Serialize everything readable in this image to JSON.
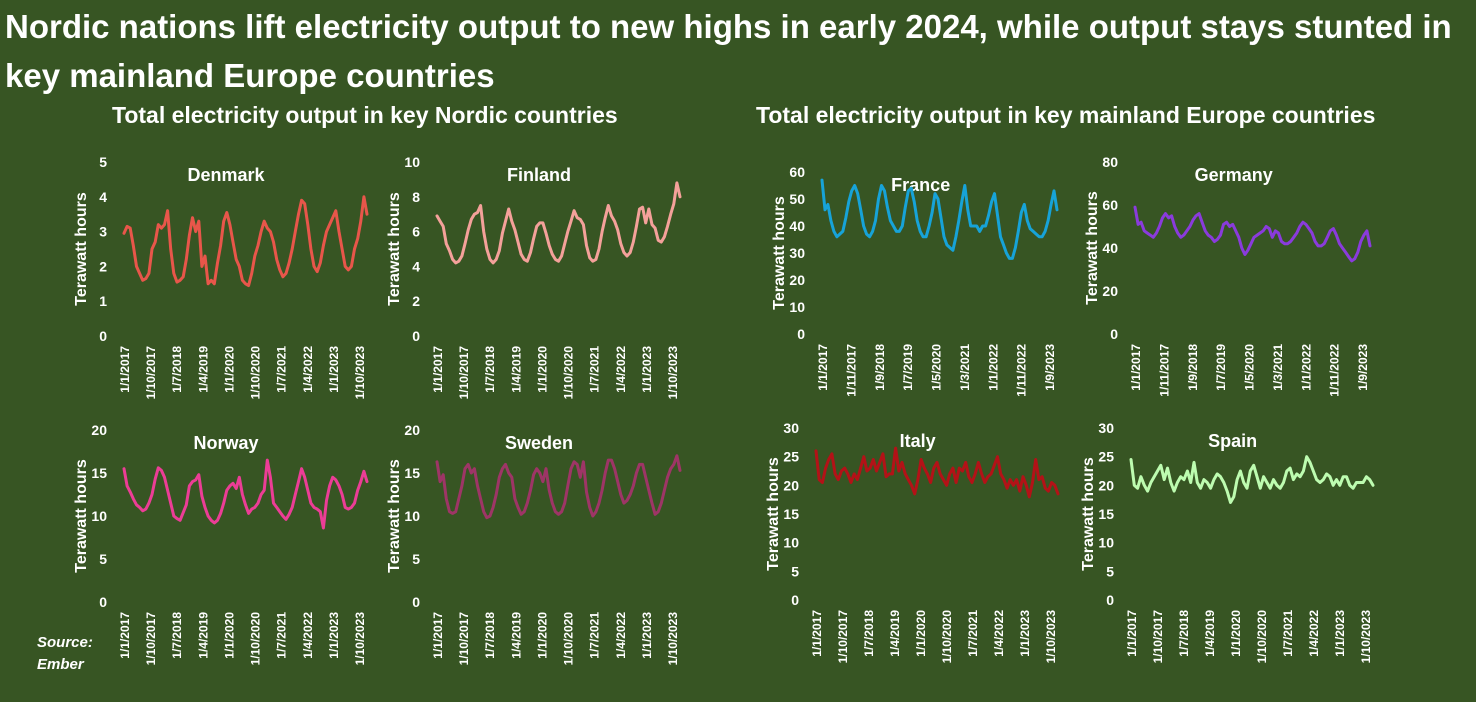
{
  "title": "Nordic nations lift electricity output to new highs in early 2024, while output stays stunted in key mainland Europe countries",
  "sections": {
    "left_title": "Total electricity output in key Nordic countries",
    "right_title": "Total electricity output in key mainland Europe countries"
  },
  "source": {
    "label": "Source:",
    "name": "Ember"
  },
  "colors": {
    "background": "#375523",
    "text": "#ffffff"
  },
  "chart_data": [
    {
      "id": "denmark",
      "type": "line",
      "title": "Denmark",
      "ylabel": "Terawatt hours",
      "ylim": [
        0,
        5
      ],
      "yticks": [
        0,
        1,
        2,
        3,
        4,
        5
      ],
      "xtick_labels": [
        "1/1/2017",
        "1/10/2017",
        "1/7/2018",
        "1/4/2019",
        "1/1/2020",
        "1/10/2020",
        "1/7/2021",
        "1/4/2022",
        "1/1/2023",
        "1/10/2023"
      ],
      "color": "#e8564a",
      "values": [
        2.95,
        3.15,
        3.1,
        2.6,
        2.0,
        1.8,
        1.6,
        1.65,
        1.8,
        2.5,
        2.7,
        3.2,
        3.1,
        3.2,
        3.6,
        2.5,
        1.8,
        1.55,
        1.6,
        1.7,
        2.2,
        2.9,
        3.4,
        3.0,
        3.3,
        2.0,
        2.3,
        1.5,
        1.6,
        1.5,
        2.1,
        2.6,
        3.3,
        3.55,
        3.2,
        2.7,
        2.2,
        2.0,
        1.6,
        1.5,
        1.45,
        1.8,
        2.3,
        2.6,
        3.0,
        3.3,
        3.1,
        3.0,
        2.7,
        2.2,
        1.9,
        1.7,
        1.8,
        2.1,
        2.5,
        3.0,
        3.5,
        3.9,
        3.8,
        3.2,
        2.5,
        2.0,
        1.85,
        2.1,
        2.6,
        3.0,
        3.2,
        3.4,
        3.6,
        3.0,
        2.5,
        2.0,
        1.9,
        2.0,
        2.5,
        2.8,
        3.3,
        4.0,
        3.5
      ]
    },
    {
      "id": "finland",
      "type": "line",
      "title": "Finland",
      "ylabel": "Terawatt hours",
      "ylim": [
        0,
        10
      ],
      "yticks": [
        0,
        2,
        4,
        6,
        8,
        10
      ],
      "xtick_labels": [
        "1/1/2017",
        "1/10/2017",
        "1/7/2018",
        "1/4/2019",
        "1/1/2020",
        "1/10/2020",
        "1/7/2021",
        "1/4/2022",
        "1/1/2023",
        "1/10/2023"
      ],
      "color": "#f4a19a",
      "values": [
        6.9,
        6.6,
        6.3,
        5.3,
        4.9,
        4.4,
        4.2,
        4.3,
        4.6,
        5.3,
        6.1,
        6.7,
        7.0,
        7.1,
        7.5,
        6.0,
        5.0,
        4.4,
        4.2,
        4.4,
        4.9,
        5.9,
        6.6,
        7.3,
        6.6,
        6.1,
        5.4,
        4.7,
        4.4,
        4.3,
        4.8,
        5.6,
        6.3,
        6.5,
        6.5,
        5.9,
        5.2,
        4.7,
        4.4,
        4.3,
        4.6,
        5.3,
        6.0,
        6.6,
        7.2,
        6.8,
        6.7,
        6.4,
        5.2,
        4.5,
        4.3,
        4.4,
        5.0,
        6.0,
        6.8,
        7.5,
        6.9,
        6.6,
        6.1,
        5.3,
        4.8,
        4.6,
        4.8,
        5.4,
        6.3,
        7.3,
        7.4,
        6.5,
        7.3,
        6.4,
        6.2,
        5.5,
        5.4,
        5.7,
        6.3,
        7.0,
        7.6,
        8.8,
        8.0
      ]
    },
    {
      "id": "norway",
      "type": "line",
      "title": "Norway",
      "ylabel": "Terawatt hours",
      "ylim": [
        0,
        20
      ],
      "yticks": [
        0,
        5,
        10,
        15,
        20
      ],
      "xtick_labels": [
        "1/1/2017",
        "1/10/2017",
        "1/7/2018",
        "1/4/2019",
        "1/1/2020",
        "1/10/2020",
        "1/7/2021",
        "1/4/2022",
        "1/1/2023",
        "1/10/2023"
      ],
      "color": "#ec3d96",
      "values": [
        15.5,
        13.5,
        12.8,
        12.0,
        11.3,
        11.0,
        10.6,
        10.8,
        11.5,
        12.5,
        14.3,
        15.6,
        15.3,
        14.5,
        13.0,
        11.5,
        10.0,
        9.7,
        9.5,
        10.4,
        11.3,
        13.5,
        14.0,
        14.2,
        14.8,
        12.3,
        11.0,
        10.0,
        9.5,
        9.2,
        9.5,
        10.3,
        11.5,
        13.0,
        13.5,
        13.8,
        13.2,
        14.5,
        12.5,
        11.3,
        10.3,
        10.8,
        11.0,
        11.5,
        12.5,
        13.0,
        16.5,
        14.5,
        11.5,
        11.0,
        10.5,
        10.0,
        9.6,
        10.2,
        11.0,
        12.5,
        14.0,
        15.5,
        14.5,
        13.0,
        11.5,
        11.0,
        10.8,
        10.5,
        8.6,
        11.8,
        13.5,
        14.5,
        14.2,
        13.5,
        12.5,
        11.0,
        10.8,
        11.0,
        11.5,
        13.0,
        14.0,
        15.2,
        14.0
      ]
    },
    {
      "id": "sweden",
      "type": "line",
      "title": "Sweden",
      "ylabel": "Terawatt hours",
      "ylim": [
        0,
        20
      ],
      "yticks": [
        0,
        5,
        10,
        15,
        20
      ],
      "xtick_labels": [
        "1/1/2017",
        "1/10/2017",
        "1/7/2018",
        "1/4/2019",
        "1/1/2020",
        "1/10/2020",
        "1/7/2021",
        "1/4/2022",
        "1/1/2023",
        "1/10/2023"
      ],
      "color": "#9e3566",
      "values": [
        16.3,
        14.0,
        14.8,
        12.0,
        10.5,
        10.3,
        10.5,
        12.0,
        13.5,
        15.5,
        16.0,
        15.0,
        15.5,
        13.5,
        12.0,
        10.5,
        9.8,
        10.0,
        11.0,
        12.5,
        14.5,
        15.5,
        16.0,
        15.0,
        14.5,
        12.0,
        11.0,
        10.2,
        10.5,
        11.5,
        13.0,
        14.8,
        15.5,
        15.0,
        14.0,
        15.5,
        13.0,
        11.5,
        10.5,
        10.2,
        10.5,
        11.5,
        13.5,
        15.5,
        16.3,
        16.0,
        14.5,
        16.3,
        12.8,
        11.0,
        10.0,
        10.5,
        11.5,
        13.0,
        15.0,
        16.5,
        16.5,
        15.5,
        14.0,
        12.5,
        11.5,
        11.8,
        12.5,
        13.5,
        15.0,
        16.0,
        16.0,
        14.5,
        13.0,
        11.5,
        10.2,
        10.5,
        11.5,
        13.0,
        14.5,
        15.5,
        16.0,
        17.0,
        15.3
      ]
    },
    {
      "id": "france",
      "type": "line",
      "title": "France",
      "ylabel": "Terawatt hours",
      "ylim": [
        0,
        60
      ],
      "yticks": [
        0,
        10,
        20,
        30,
        40,
        50,
        60
      ],
      "xtick_labels": [
        "1/1/2017",
        "1/11/2017",
        "1/9/2018",
        "1/7/2019",
        "1/5/2020",
        "1/3/2021",
        "1/1/2022",
        "1/11/2022",
        "1/9/2023"
      ],
      "color": "#17a3d8",
      "values": [
        57,
        46,
        48,
        42,
        38,
        36,
        37,
        38,
        43,
        49,
        53,
        55,
        52,
        46,
        40,
        37,
        36,
        38,
        42,
        50,
        55,
        53,
        47,
        42,
        40,
        38,
        38,
        40,
        47,
        53,
        54,
        49,
        42,
        38,
        36,
        36,
        40,
        45,
        52,
        50,
        43,
        36,
        33,
        32,
        31,
        36,
        42,
        49,
        55,
        46,
        40,
        40,
        40,
        38,
        40,
        40,
        44,
        49,
        52,
        44,
        36,
        33,
        30,
        28,
        28,
        32,
        38,
        45,
        48,
        42,
        39,
        38,
        37,
        36,
        36,
        38,
        42,
        48,
        53,
        46
      ]
    },
    {
      "id": "germany",
      "type": "line",
      "title": "Germany",
      "ylabel": "Terawatt hours",
      "ylim": [
        0,
        80
      ],
      "yticks": [
        0,
        20,
        40,
        60,
        80
      ],
      "xtick_labels": [
        "1/1/2017",
        "1/11/2017",
        "1/9/2018",
        "1/7/2019",
        "1/5/2020",
        "1/3/2021",
        "1/1/2022",
        "1/11/2022",
        "1/9/2023"
      ],
      "color": "#8a3bdc",
      "values": [
        59,
        51,
        52,
        48,
        47,
        46,
        45,
        47,
        50,
        54,
        56,
        54,
        55,
        50,
        47,
        45,
        46,
        48,
        50,
        53,
        55,
        56,
        52,
        48,
        46,
        45,
        43,
        44,
        46,
        51,
        52,
        50,
        51,
        48,
        45,
        40,
        37,
        39,
        42,
        45,
        46,
        47,
        48,
        50,
        49,
        45,
        48,
        47,
        43,
        42,
        42,
        43,
        45,
        47,
        50,
        52,
        51,
        49,
        47,
        43,
        41,
        41,
        42,
        45,
        48,
        49,
        46,
        42,
        40,
        38,
        36,
        34,
        35,
        38,
        43,
        46,
        48,
        41
      ]
    },
    {
      "id": "italy",
      "type": "line",
      "title": "Italy",
      "ylabel": "Terawatt hours",
      "ylim": [
        0,
        30
      ],
      "yticks": [
        0,
        5,
        10,
        15,
        20,
        25,
        30
      ],
      "xtick_labels": [
        "1/1/2017",
        "1/10/2017",
        "1/7/2018",
        "1/4/2019",
        "1/1/2020",
        "1/10/2020",
        "1/7/2021",
        "1/4/2022",
        "1/1/2023",
        "1/10/2023"
      ],
      "color": "#b31217",
      "values": [
        26,
        21,
        20.5,
        23,
        24.5,
        25.5,
        22,
        21,
        22.5,
        23,
        22,
        20.5,
        22,
        21,
        23,
        25,
        22.5,
        23,
        24.5,
        22.5,
        24,
        25.5,
        21.5,
        22,
        22,
        26.5,
        22.5,
        24,
        22,
        21,
        20,
        18.5,
        21,
        24.5,
        23,
        22,
        20.5,
        23,
        24,
        22,
        21,
        20,
        22,
        23,
        20.5,
        23,
        22.5,
        24,
        21.5,
        20.5,
        22,
        24,
        22,
        20.5,
        21.5,
        22,
        23.5,
        25,
        22,
        21,
        19.5,
        21,
        20,
        21,
        19,
        21.5,
        20,
        18,
        20.5,
        24.5,
        21,
        21.5,
        19.5,
        19,
        20.5,
        20,
        18.5
      ]
    },
    {
      "id": "spain",
      "type": "line",
      "title": "Spain",
      "ylabel": "Terawatt hours",
      "ylim": [
        0,
        30
      ],
      "yticks": [
        0,
        5,
        10,
        15,
        20,
        25,
        30
      ],
      "xtick_labels": [
        "1/1/2017",
        "1/10/2017",
        "1/7/2018",
        "1/4/2019",
        "1/1/2020",
        "1/10/2020",
        "1/7/2021",
        "1/4/2022",
        "1/1/2023",
        "1/10/2023"
      ],
      "color": "#bdfcb0",
      "values": [
        24.5,
        20,
        19.5,
        21.5,
        20,
        19,
        20.5,
        21.5,
        22.5,
        23.5,
        21,
        23,
        20.5,
        19,
        20.5,
        21.5,
        21,
        22.5,
        20.5,
        24,
        20.5,
        19.5,
        21,
        20.5,
        19.5,
        21,
        22,
        21.5,
        20.5,
        19,
        17,
        18,
        21,
        22.5,
        20.5,
        19.5,
        22.5,
        23.5,
        21.5,
        19.5,
        21.5,
        20.5,
        19.5,
        21,
        20,
        19.5,
        20.5,
        22.5,
        23,
        21,
        22,
        21.5,
        22.5,
        25,
        24,
        22.5,
        21,
        20.5,
        21,
        22,
        21.5,
        20,
        21,
        20,
        21.5,
        21.5,
        20,
        19.5,
        20.5,
        20.5,
        20.5,
        21.5,
        21,
        20
      ]
    }
  ]
}
